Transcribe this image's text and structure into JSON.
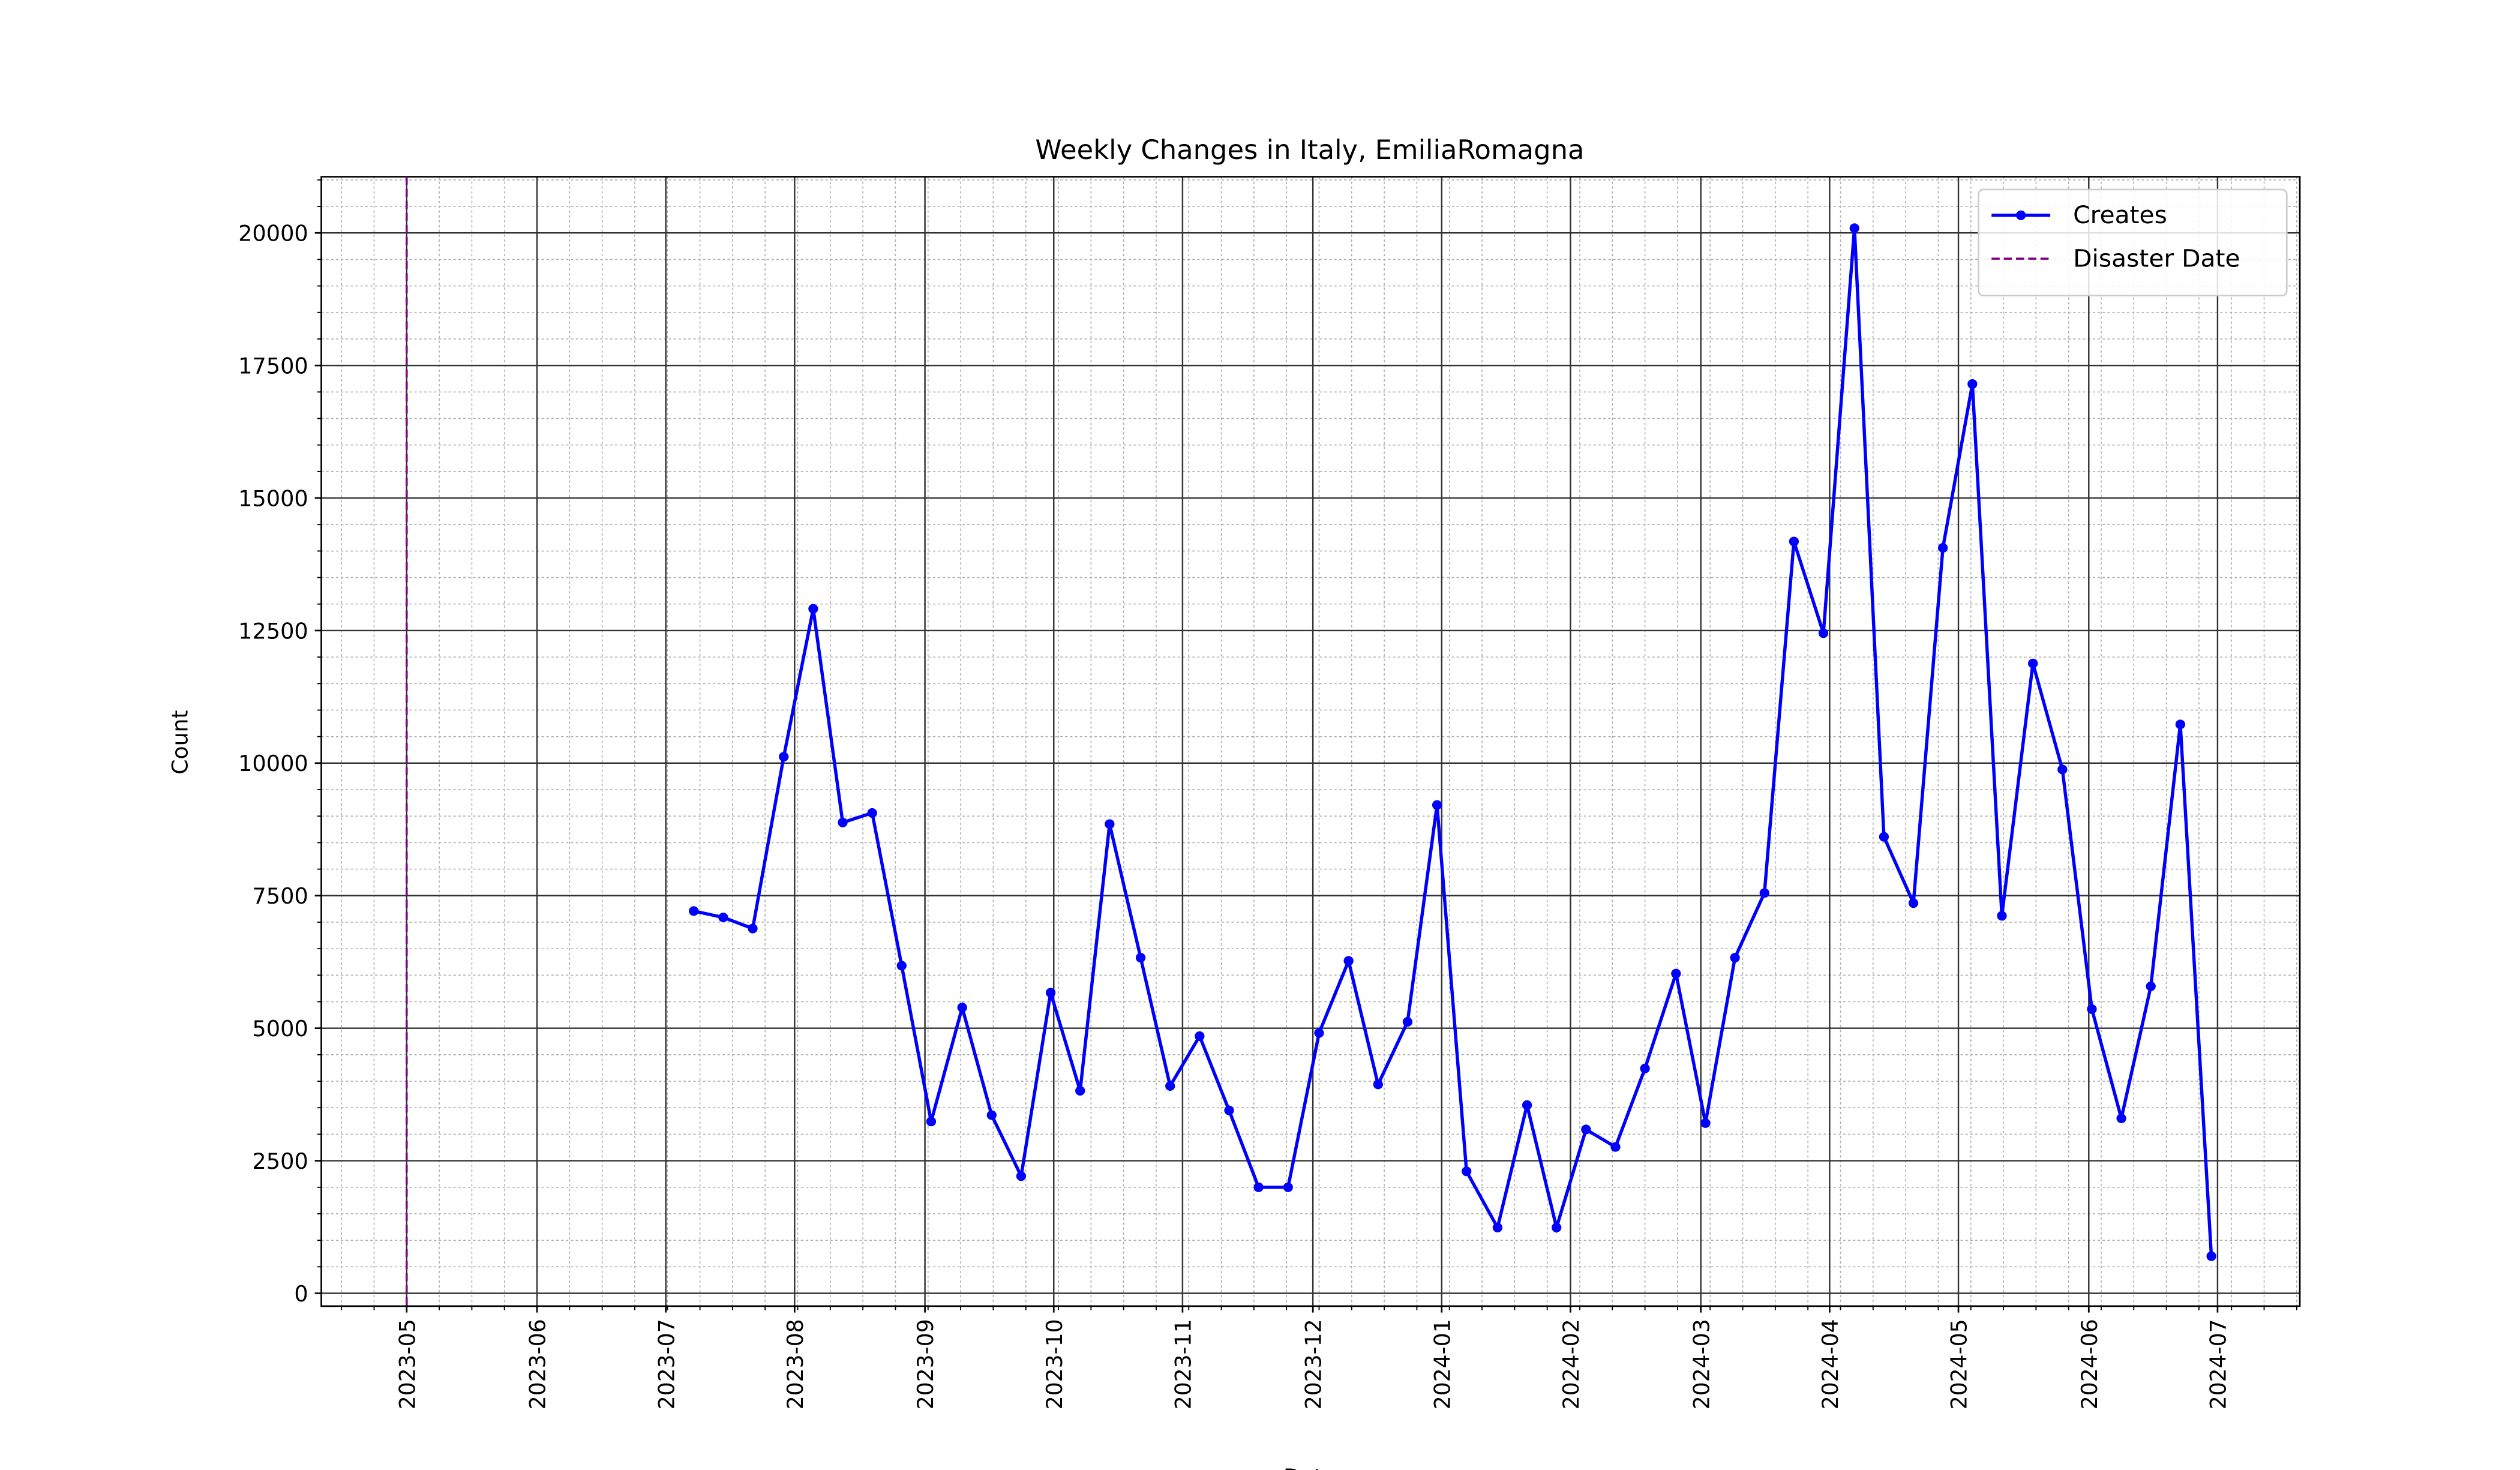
{
  "chart_data": {
    "type": "line",
    "title": "Weekly Changes in Italy, EmiliaRomagna",
    "xlabel": "Date",
    "ylabel": "Count",
    "x": [
      2023.518,
      2023.537,
      2023.556,
      2023.576,
      2023.595,
      2023.614,
      2023.633,
      2023.652,
      2023.671,
      2023.691,
      2023.71,
      2023.729,
      2023.748,
      2023.767,
      2023.786,
      2023.806,
      2023.825,
      2023.844,
      2023.863,
      2023.882,
      2023.901,
      2023.921,
      2023.94,
      2023.959,
      2023.978,
      2023.997,
      2024.016,
      2024.036,
      2024.055,
      2024.074,
      2024.093,
      2024.112,
      2024.131,
      2024.151,
      2024.17,
      2024.189,
      2024.208,
      2024.227,
      2024.246,
      2024.266,
      2024.285,
      2024.304,
      2024.323,
      2024.342,
      2024.361,
      2024.381,
      2024.4,
      2024.419,
      2024.438,
      2024.457,
      2024.476,
      2024.496
    ],
    "series": [
      {
        "name": "Creates",
        "color": "#0000ff",
        "values": [
          7210,
          7090,
          6880,
          10120,
          12910,
          8880,
          9060,
          6180,
          3240,
          5390,
          3360,
          2210,
          5670,
          3820,
          8850,
          6330,
          3910,
          4850,
          3450,
          2000,
          2000,
          4910,
          6270,
          3940,
          5120,
          9210,
          2300,
          1240,
          3550,
          1240,
          3090,
          2760,
          4240,
          6030,
          3210,
          6330,
          7550,
          14180,
          12450,
          20090,
          8610,
          7360,
          14060,
          17150,
          7120,
          11880,
          9880,
          5360,
          3300,
          5790,
          10730,
          700
        ]
      }
    ],
    "vlines": [
      {
        "name": "Disaster Date",
        "color": "#800080",
        "x": 2023.333
      }
    ],
    "xlim": [
      2023.278,
      2024.553
    ],
    "ylim": [
      -242,
      21060
    ],
    "xticks": [
      {
        "value": 2023.333,
        "label": "2023-05"
      },
      {
        "value": 2023.417,
        "label": "2023-06"
      },
      {
        "value": 2023.5,
        "label": "2023-07"
      },
      {
        "value": 2023.583,
        "label": "2023-08"
      },
      {
        "value": 2023.667,
        "label": "2023-09"
      },
      {
        "value": 2023.75,
        "label": "2023-10"
      },
      {
        "value": 2023.833,
        "label": "2023-11"
      },
      {
        "value": 2023.917,
        "label": "2023-12"
      },
      {
        "value": 2024.0,
        "label": "2024-01"
      },
      {
        "value": 2024.083,
        "label": "2024-02"
      },
      {
        "value": 2024.167,
        "label": "2024-03"
      },
      {
        "value": 2024.25,
        "label": "2024-04"
      },
      {
        "value": 2024.333,
        "label": "2024-05"
      },
      {
        "value": 2024.417,
        "label": "2024-06"
      },
      {
        "value": 2024.5,
        "label": "2024-07"
      }
    ],
    "yticks": [
      0,
      2500,
      5000,
      7500,
      10000,
      12500,
      15000,
      17500,
      20000
    ],
    "grid": true,
    "minor_grid": true,
    "legend": "upper right"
  }
}
